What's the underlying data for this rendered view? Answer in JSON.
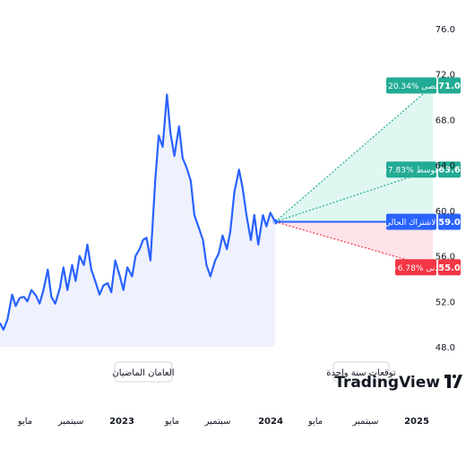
{
  "chart_data": {
    "type": "line",
    "ylim": [
      48.0,
      76.0
    ],
    "y_ticks": [
      "76.0",
      "72.0",
      "68.0",
      "64.0",
      "60.0",
      "56.0",
      "52.0",
      "48.0"
    ],
    "x_ticks": [
      {
        "label": "مايو",
        "year": false
      },
      {
        "label": "سبتمبر",
        "year": false
      },
      {
        "label": "2023",
        "year": true
      },
      {
        "label": "مايو",
        "year": false
      },
      {
        "label": "سبتمبر",
        "year": false
      },
      {
        "label": "2024",
        "year": true
      },
      {
        "label": "مايو",
        "year": false
      },
      {
        "label": "سبتمبر",
        "year": false
      },
      {
        "label": "2025",
        "year": true
      }
    ],
    "history": {
      "x": [
        "2022-03-01",
        "2022-03-10",
        "2022-03-20",
        "2022-04-01",
        "2022-04-10",
        "2022-04-20",
        "2022-05-01",
        "2022-05-10",
        "2022-05-20",
        "2022-06-01",
        "2022-06-10",
        "2022-06-20",
        "2022-07-01",
        "2022-07-10",
        "2022-07-20",
        "2022-08-01",
        "2022-08-10",
        "2022-08-20",
        "2022-09-01",
        "2022-09-10",
        "2022-09-20",
        "2022-10-01",
        "2022-10-10",
        "2022-10-20",
        "2022-11-01",
        "2022-11-10",
        "2022-11-20",
        "2022-12-01",
        "2022-12-10",
        "2022-12-20",
        "2023-01-01",
        "2023-01-10",
        "2023-01-20",
        "2023-02-01",
        "2023-02-10",
        "2023-02-20",
        "2023-03-01",
        "2023-03-10",
        "2023-03-20",
        "2023-04-01",
        "2023-04-10",
        "2023-04-20",
        "2023-05-01",
        "2023-05-10",
        "2023-05-20",
        "2023-06-01",
        "2023-06-10",
        "2023-06-20",
        "2023-07-01",
        "2023-07-10",
        "2023-07-20",
        "2023-08-01",
        "2023-08-10",
        "2023-08-20",
        "2023-09-01",
        "2023-09-10",
        "2023-09-20",
        "2023-10-01",
        "2023-10-10",
        "2023-10-20",
        "2023-11-01",
        "2023-11-10",
        "2023-11-20",
        "2023-12-01",
        "2023-12-10",
        "2023-12-20",
        "2024-01-01",
        "2024-01-10",
        "2024-01-20",
        "2024-02-01"
      ],
      "values": [
        50.1,
        49.5,
        50.4,
        52.6,
        51.6,
        52.3,
        52.4,
        52.0,
        53.0,
        52.5,
        51.8,
        53.0,
        54.8,
        52.4,
        51.8,
        53.2,
        55.0,
        53.0,
        55.2,
        53.8,
        56.0,
        55.2,
        57.0,
        54.8,
        53.6,
        52.6,
        53.4,
        53.6,
        52.8,
        55.6,
        54.2,
        53.0,
        55.0,
        54.2,
        56.0,
        56.6,
        57.4,
        57.6,
        55.6,
        62.6,
        66.6,
        65.6,
        70.2,
        66.8,
        64.8,
        67.4,
        64.6,
        63.8,
        62.6,
        59.6,
        58.6,
        57.4,
        55.2,
        54.2,
        55.6,
        56.2,
        57.8,
        56.6,
        58.2,
        61.6,
        63.6,
        62.0,
        59.6,
        57.4,
        59.6,
        57.0,
        59.6,
        58.6,
        59.8,
        59.0
      ]
    },
    "forecast": {
      "start": "2024-02-01",
      "end": "2025-02-01",
      "current": {
        "value": 59.0,
        "value_label": "59.0",
        "label": "الاشتراك الحالي"
      },
      "max": {
        "value": 71.0,
        "value_label": "71.0",
        "label": "+20.34% أقصى"
      },
      "avg": {
        "value": 63.6,
        "value_label": "63.6",
        "label": "+7.83% متوسط"
      },
      "min": {
        "value": 55.0,
        "value_label": "55.0",
        "label": "−6.78% أدنى"
      }
    },
    "period_labels": {
      "past": "العامان الماضيان",
      "future": "توقعات سنة واحدة"
    },
    "colors": {
      "line": "#2962ff",
      "history_fill": "#e8ecfb",
      "up": "#22ab94",
      "up_fill": "#e0f7f1",
      "down": "#f23645",
      "down_fill": "#fde3e8",
      "current": "#2962ff"
    },
    "logo": "TradingView"
  }
}
